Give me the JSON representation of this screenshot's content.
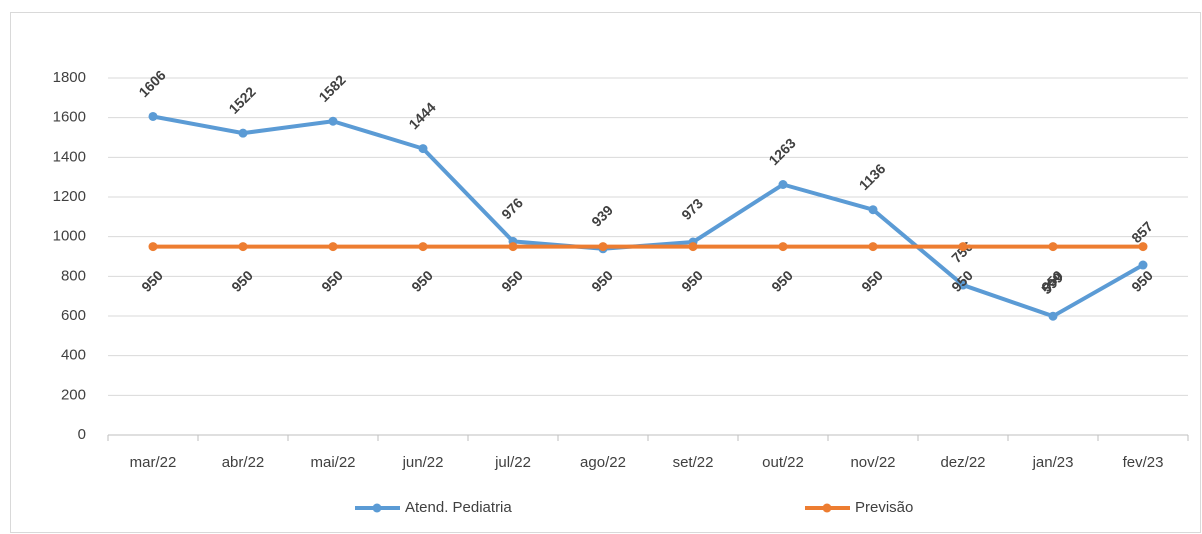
{
  "chart_data": {
    "type": "line",
    "categories": [
      "mar/22",
      "abr/22",
      "mai/22",
      "jun/22",
      "jul/22",
      "ago/22",
      "set/22",
      "out/22",
      "nov/22",
      "dez/22",
      "jan/23",
      "fev/23"
    ],
    "series": [
      {
        "name": "Atend. Pediatria",
        "color": "#5b9bd5",
        "label_color": "#2f5597",
        "values": [
          1606,
          1522,
          1582,
          1444,
          976,
          939,
          973,
          1263,
          1136,
          756,
          599,
          857
        ]
      },
      {
        "name": "Previsão",
        "color": "#ed7d31",
        "label_color": "#e06c1f",
        "values": [
          950,
          950,
          950,
          950,
          950,
          950,
          950,
          950,
          950,
          950,
          950,
          950
        ]
      }
    ],
    "ylim": [
      0,
      1800
    ],
    "yticks": [
      0,
      200,
      400,
      600,
      800,
      1000,
      1200,
      1400,
      1600,
      1800
    ],
    "grid": true,
    "legend": "bottom"
  }
}
